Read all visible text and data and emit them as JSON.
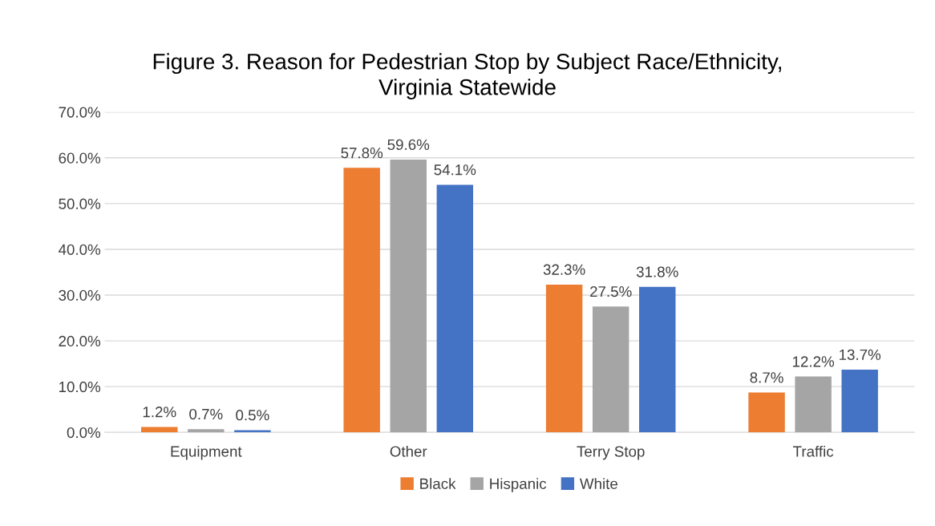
{
  "chart_data": {
    "type": "bar",
    "title": "Figure 3. Reason for Pedestrian Stop by Subject Race/Ethnicity,\nVirginia Statewide",
    "categories": [
      "Equipment",
      "Other",
      "Terry Stop",
      "Traffic"
    ],
    "series": [
      {
        "name": "Black",
        "color": "#ed7d31",
        "values": [
          1.2,
          57.8,
          32.3,
          8.7
        ],
        "value_labels": [
          "1.2%",
          "57.8%",
          "32.3%",
          "8.7%"
        ]
      },
      {
        "name": "Hispanic",
        "color": "#a5a5a5",
        "values": [
          0.7,
          59.6,
          27.5,
          12.2
        ],
        "value_labels": [
          "0.7%",
          "59.6%",
          "27.5%",
          "12.2%"
        ]
      },
      {
        "name": "White",
        "color": "#4472c4",
        "values": [
          0.5,
          54.1,
          31.8,
          13.7
        ],
        "value_labels": [
          "0.5%",
          "54.1%",
          "31.8%",
          "13.7%"
        ]
      }
    ],
    "ylim": [
      0,
      70
    ],
    "yticks": [
      {
        "value": 0,
        "label": "0.0%"
      },
      {
        "value": 10,
        "label": "10.0%"
      },
      {
        "value": 20,
        "label": "20.0%"
      },
      {
        "value": 30,
        "label": "30.0%"
      },
      {
        "value": 40,
        "label": "40.0%"
      },
      {
        "value": 50,
        "label": "50.0%"
      },
      {
        "value": 60,
        "label": "60.0%"
      },
      {
        "value": 70,
        "label": "70.0%"
      }
    ],
    "grid": "y",
    "legend": "bottom"
  }
}
